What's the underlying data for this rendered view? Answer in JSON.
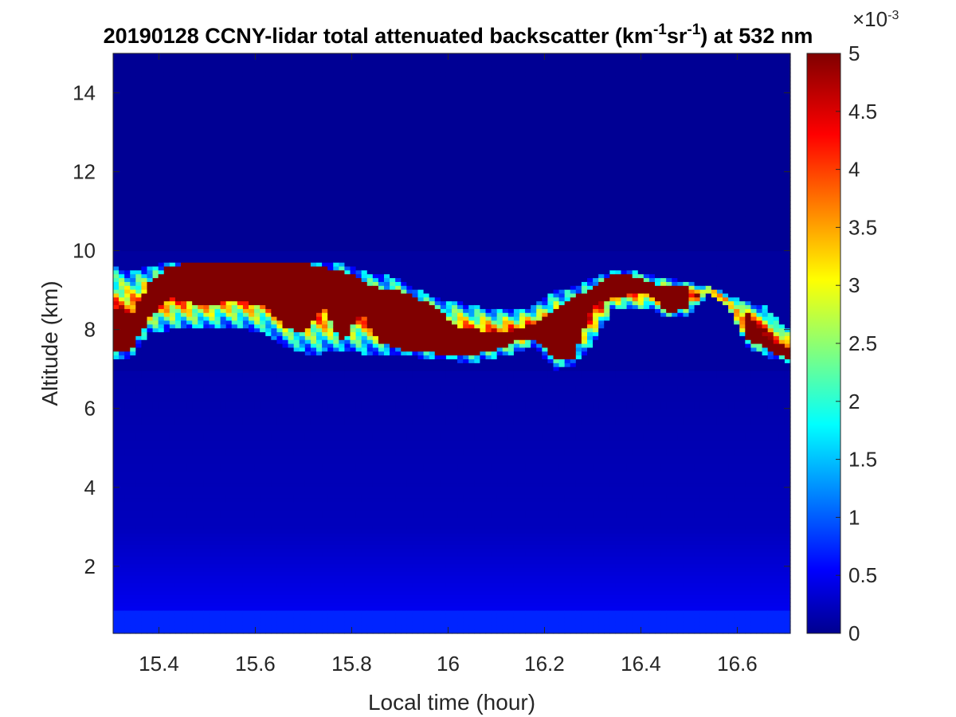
{
  "chart_data": {
    "type": "heatmap",
    "title_parts": {
      "a": "20190128 CCNY-lidar total attenuated backscatter (km",
      "sup1": "-1",
      "b": "sr",
      "sup2": "-1",
      "c": ") at 532 nm"
    },
    "xlabel": "Local time (hour)",
    "ylabel": "Altitude (km)",
    "xlim": [
      15.305,
      16.71
    ],
    "ylim": [
      0.3,
      15
    ],
    "xticks": [
      "15.4",
      "15.6",
      "15.8",
      "16",
      "16.2",
      "16.4",
      "16.6"
    ],
    "xtick_values": [
      15.4,
      15.6,
      15.8,
      16.0,
      16.2,
      16.4,
      16.6
    ],
    "yticks": [
      "2",
      "4",
      "6",
      "8",
      "10",
      "12",
      "14"
    ],
    "ytick_values": [
      2,
      4,
      6,
      8,
      10,
      12,
      14
    ],
    "colormap": "jet",
    "colorbar": {
      "range": [
        0,
        0.005
      ],
      "exponent_label": "×10",
      "exponent_sup": "-3",
      "ticks": [
        "0",
        "0.5",
        "1",
        "1.5",
        "2",
        "2.5",
        "3",
        "3.5",
        "4",
        "4.5",
        "5"
      ],
      "tick_values": [
        0,
        0.5,
        1,
        1.5,
        2,
        2.5,
        3,
        3.5,
        4,
        4.5,
        5
      ]
    },
    "cloud_layer": {
      "description_values_units": "km^-1 sr^-1 x 10^-3",
      "saturated_value": 5,
      "background_value_high_altitude": 0.1,
      "background_value_mid_altitude": 0.3,
      "background_value_near_surface": 0.8,
      "profile": [
        {
          "t": 15.31,
          "top": 9.6,
          "bottom": 7.3,
          "core_top": 8.5,
          "core_bottom": 7.5
        },
        {
          "t": 15.34,
          "top": 9.5,
          "bottom": 7.3,
          "core_top": 8.3,
          "core_bottom": 7.4
        },
        {
          "t": 15.38,
          "top": 9.6,
          "bottom": 7.9,
          "core_top": 9.2,
          "core_bottom": 8.3
        },
        {
          "t": 15.42,
          "top": 9.7,
          "bottom": 8.0,
          "core_top": 9.6,
          "core_bottom": 8.8
        },
        {
          "t": 15.46,
          "top": 9.75,
          "bottom": 8.0,
          "core_top": 9.7,
          "core_bottom": 8.7
        },
        {
          "t": 15.5,
          "top": 9.75,
          "bottom": 8.0,
          "core_top": 9.7,
          "core_bottom": 8.6
        },
        {
          "t": 15.54,
          "top": 9.75,
          "bottom": 8.1,
          "core_top": 9.7,
          "core_bottom": 8.7
        },
        {
          "t": 15.58,
          "top": 9.7,
          "bottom": 8.0,
          "core_top": 9.7,
          "core_bottom": 8.7
        },
        {
          "t": 15.62,
          "top": 9.75,
          "bottom": 7.9,
          "core_top": 9.7,
          "core_bottom": 8.6
        },
        {
          "t": 15.66,
          "top": 9.75,
          "bottom": 7.6,
          "core_top": 9.7,
          "core_bottom": 8.1
        },
        {
          "t": 15.7,
          "top": 9.75,
          "bottom": 7.4,
          "core_top": 9.7,
          "core_bottom": 7.9
        },
        {
          "t": 15.74,
          "top": 9.7,
          "bottom": 7.4,
          "core_top": 9.6,
          "core_bottom": 8.6
        },
        {
          "t": 15.78,
          "top": 9.7,
          "bottom": 7.5,
          "core_top": 9.5,
          "core_bottom": 7.7
        },
        {
          "t": 15.82,
          "top": 9.5,
          "bottom": 7.4,
          "core_top": 9.3,
          "core_bottom": 8.4
        },
        {
          "t": 15.86,
          "top": 9.4,
          "bottom": 7.4,
          "core_top": 9.0,
          "core_bottom": 7.7
        },
        {
          "t": 15.9,
          "top": 9.3,
          "bottom": 7.4,
          "core_top": 9.0,
          "core_bottom": 7.5
        },
        {
          "t": 15.94,
          "top": 9.0,
          "bottom": 7.3,
          "core_top": 8.8,
          "core_bottom": 7.5
        },
        {
          "t": 15.98,
          "top": 8.8,
          "bottom": 7.3,
          "core_top": 8.5,
          "core_bottom": 7.4
        },
        {
          "t": 16.02,
          "top": 8.7,
          "bottom": 7.2,
          "core_top": 8.1,
          "core_bottom": 7.4
        },
        {
          "t": 16.06,
          "top": 8.6,
          "bottom": 7.2,
          "core_top": 8.0,
          "core_bottom": 7.4
        },
        {
          "t": 16.1,
          "top": 8.5,
          "bottom": 7.3,
          "core_top": 7.9,
          "core_bottom": 7.5
        },
        {
          "t": 16.14,
          "top": 8.5,
          "bottom": 7.4,
          "core_top": 8.0,
          "core_bottom": 7.7
        },
        {
          "t": 16.18,
          "top": 8.6,
          "bottom": 7.6,
          "core_top": 8.2,
          "core_bottom": 7.8
        },
        {
          "t": 16.22,
          "top": 9.0,
          "bottom": 7.0,
          "core_top": 8.5,
          "core_bottom": 7.3
        },
        {
          "t": 16.26,
          "top": 9.1,
          "bottom": 7.1,
          "core_top": 8.8,
          "core_bottom": 7.3
        },
        {
          "t": 16.3,
          "top": 9.3,
          "bottom": 7.6,
          "core_top": 9.1,
          "core_bottom": 8.6
        },
        {
          "t": 16.34,
          "top": 9.5,
          "bottom": 8.5,
          "core_top": 9.4,
          "core_bottom": 8.8
        },
        {
          "t": 16.38,
          "top": 9.5,
          "bottom": 8.5,
          "core_top": 9.4,
          "core_bottom": 8.9
        },
        {
          "t": 16.42,
          "top": 9.4,
          "bottom": 8.5,
          "core_top": 9.2,
          "core_bottom": 8.9
        },
        {
          "t": 16.46,
          "top": 9.3,
          "bottom": 8.3,
          "core_top": 9.1,
          "core_bottom": 8.4
        },
        {
          "t": 16.5,
          "top": 9.2,
          "bottom": 8.4,
          "core_top": 9.1,
          "core_bottom": 8.6
        },
        {
          "t": 16.54,
          "top": 9.1,
          "bottom": 8.9,
          "core_top": 0,
          "core_bottom": 0
        },
        {
          "t": 16.58,
          "top": 8.9,
          "bottom": 8.6,
          "core_top": 0,
          "core_bottom": 0
        },
        {
          "t": 16.62,
          "top": 8.7,
          "bottom": 7.6,
          "core_top": 8.5,
          "core_bottom": 7.8
        },
        {
          "t": 16.66,
          "top": 8.6,
          "bottom": 7.3,
          "core_top": 7.8,
          "core_bottom": 7.5
        },
        {
          "t": 16.7,
          "top": 8.0,
          "bottom": 7.2,
          "core_top": 7.6,
          "core_bottom": 7.3
        }
      ]
    }
  }
}
